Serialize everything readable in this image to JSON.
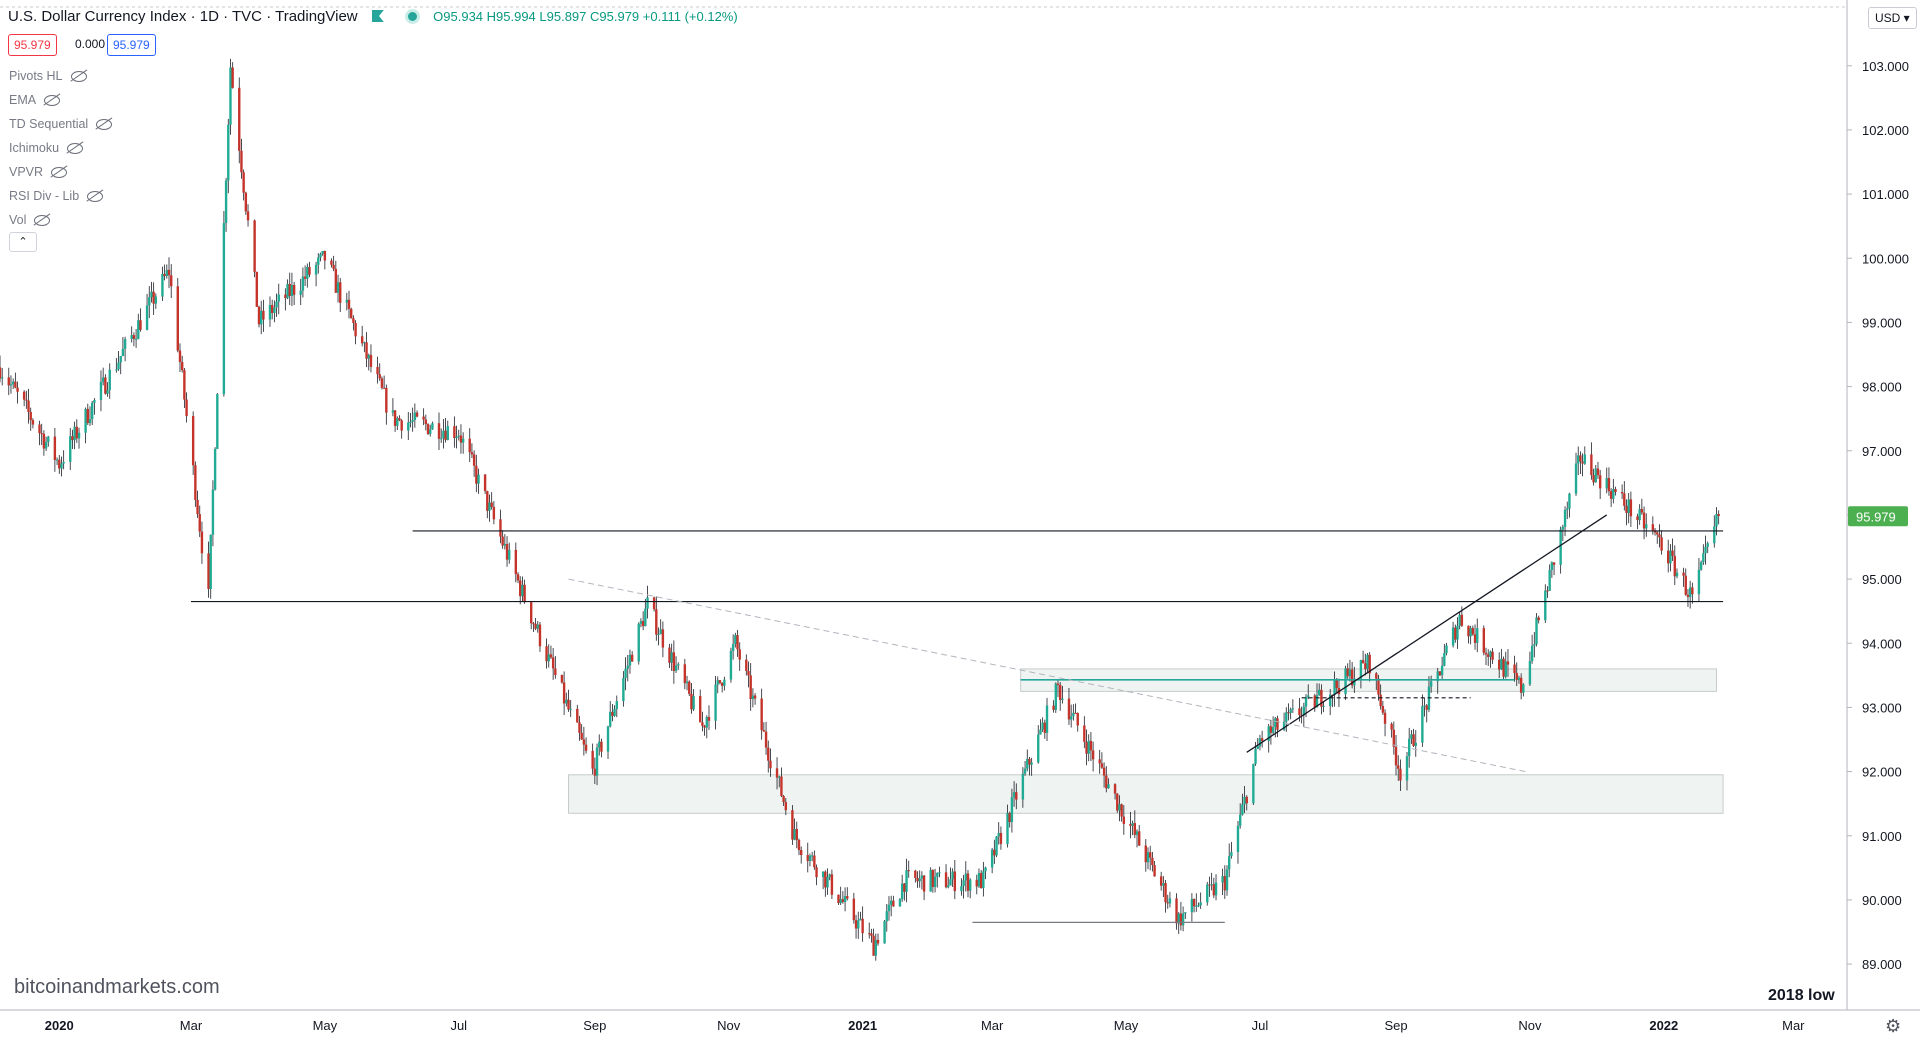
{
  "header": {
    "symbol": "U.S. Dollar Currency Index",
    "interval": "1D",
    "exchange": "TVC",
    "source": "TradingView",
    "ohlc": "O95.934 H95.994 L95.897 C95.979 +0.111 (+0.12%)"
  },
  "price_boxes": {
    "bid": "95.979",
    "spread": "0.000",
    "ask": "95.979"
  },
  "indicators": [
    "Pivots HL",
    "EMA",
    "TD Sequential",
    "Ichimoku",
    "VPVR",
    "RSI Div - Lib",
    "Vol"
  ],
  "collapse_icon": "chevron-up-icon",
  "currency_selector": "USD",
  "watermark": "bitcoinandmarkets.com",
  "annotation_2018_low": "2018 low",
  "colors": {
    "up": "#22ab94",
    "down": "#c4342b",
    "current_price": "#4caf50",
    "support_zone": "#e4ebe8",
    "resistance_line": "#26a69a"
  },
  "chart_data": {
    "type": "candlestick",
    "x_ticks": [
      "2020",
      "Mar",
      "May",
      "Jul",
      "Sep",
      "Nov",
      "2021",
      "Mar",
      "May",
      "Jul",
      "Sep",
      "Nov",
      "2022",
      "Mar"
    ],
    "y_ticks": [
      "103.000",
      "102.000",
      "101.000",
      "100.000",
      "99.000",
      "98.000",
      "97.000",
      "96.000",
      "95.000",
      "94.000",
      "93.000",
      "92.000",
      "91.000",
      "90.000",
      "89.000"
    ],
    "y_range": [
      88.3,
      103.9
    ],
    "last_price": 95.979,
    "trend_path": [
      [
        "2019-12-05",
        98.3
      ],
      [
        "2020-01-01",
        96.8
      ],
      [
        "2020-02-20",
        99.8
      ],
      [
        "2020-03-09",
        94.7
      ],
      [
        "2020-03-19",
        103.0
      ],
      [
        "2020-04-01",
        99.0
      ],
      [
        "2020-05-01",
        100.0
      ],
      [
        "2020-06-01",
        97.5
      ],
      [
        "2020-07-01",
        97.3
      ],
      [
        "2020-08-31",
        92.0
      ],
      [
        "2020-09-25",
        94.6
      ],
      [
        "2020-10-20",
        92.7
      ],
      [
        "2020-11-04",
        94.0
      ],
      [
        "2020-12-01",
        91.0
      ],
      [
        "2021-01-06",
        89.3
      ],
      [
        "2021-01-20",
        90.3
      ],
      [
        "2021-02-25",
        90.3
      ],
      [
        "2021-03-31",
        93.3
      ],
      [
        "2021-05-25",
        89.7
      ],
      [
        "2021-06-15",
        90.3
      ],
      [
        "2021-07-01",
        92.5
      ],
      [
        "2021-08-20",
        93.7
      ],
      [
        "2021-09-03",
        92.0
      ],
      [
        "2021-09-30",
        94.4
      ],
      [
        "2021-10-28",
        93.3
      ],
      [
        "2021-11-24",
        96.9
      ],
      [
        "2021-12-30",
        95.6
      ],
      [
        "2022-01-14",
        94.7
      ],
      [
        "2022-01-26",
        95.98
      ]
    ],
    "levels": [
      {
        "price": 95.75,
        "from": "2020-06-10",
        "to": "2022-01-28"
      },
      {
        "price": 94.65,
        "from": "2020-03-01",
        "to": "2022-01-28"
      }
    ],
    "zones": [
      {
        "from": "2020-08-20",
        "to": "2022-01-28",
        "low": 91.35,
        "high": 91.95
      },
      {
        "from": "2021-03-14",
        "to": "2022-01-25",
        "low": 93.25,
        "high": 93.6
      }
    ],
    "resistance_line": {
      "price": 93.43,
      "from": "2021-03-14",
      "to": "2021-10-25"
    },
    "dashed_level": {
      "price": 93.15,
      "from": "2021-07-20",
      "to": "2021-10-05"
    },
    "low_line": {
      "price": 89.65,
      "from": "2021-02-20",
      "to": "2021-06-15"
    },
    "trendline_up": {
      "from": [
        "2021-06-25",
        92.3
      ],
      "to": [
        "2021-12-06",
        96.0
      ]
    },
    "trendline_down": {
      "from": [
        "2020-08-20",
        95.0
      ],
      "to": [
        "2021-10-30",
        92.0
      ]
    }
  }
}
